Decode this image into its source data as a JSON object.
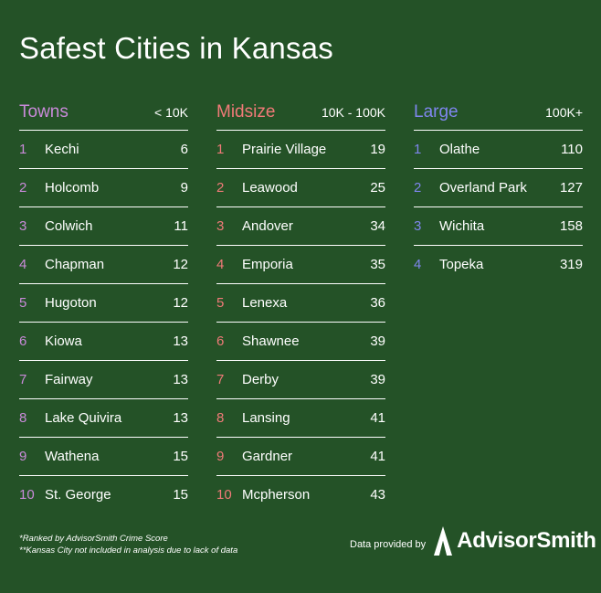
{
  "title": "Safest Cities in Kansas",
  "colors": {
    "background": "#245227",
    "towns": "#c98ad9",
    "midsize": "#f07a78",
    "large": "#7f86ee"
  },
  "columns": [
    {
      "name": "Towns",
      "range": "< 10K",
      "rows": [
        {
          "rank": "1",
          "city": "Kechi",
          "score": "6"
        },
        {
          "rank": "2",
          "city": "Holcomb",
          "score": "9"
        },
        {
          "rank": "3",
          "city": "Colwich",
          "score": "11"
        },
        {
          "rank": "4",
          "city": "Chapman",
          "score": "12"
        },
        {
          "rank": "5",
          "city": "Hugoton",
          "score": "12"
        },
        {
          "rank": "6",
          "city": "Kiowa",
          "score": "13"
        },
        {
          "rank": "7",
          "city": "Fairway",
          "score": "13"
        },
        {
          "rank": "8",
          "city": "Lake Quivira",
          "score": "13"
        },
        {
          "rank": "9",
          "city": "Wathena",
          "score": "15"
        },
        {
          "rank": "10",
          "city": "St. George",
          "score": "15"
        }
      ]
    },
    {
      "name": "Midsize",
      "range": "10K - 100K",
      "rows": [
        {
          "rank": "1",
          "city": "Prairie Village",
          "score": "19"
        },
        {
          "rank": "2",
          "city": "Leawood",
          "score": "25"
        },
        {
          "rank": "3",
          "city": "Andover",
          "score": "34"
        },
        {
          "rank": "4",
          "city": "Emporia",
          "score": "35"
        },
        {
          "rank": "5",
          "city": "Lenexa",
          "score": "36"
        },
        {
          "rank": "6",
          "city": "Shawnee",
          "score": "39"
        },
        {
          "rank": "7",
          "city": "Derby",
          "score": "39"
        },
        {
          "rank": "8",
          "city": "Lansing",
          "score": "41"
        },
        {
          "rank": "9",
          "city": "Gardner",
          "score": "41"
        },
        {
          "rank": "10",
          "city": "Mcpherson",
          "score": "43"
        }
      ]
    },
    {
      "name": "Large",
      "range": "100K+",
      "rows": [
        {
          "rank": "1",
          "city": "Olathe",
          "score": "110"
        },
        {
          "rank": "2",
          "city": "Overland Park",
          "score": "127"
        },
        {
          "rank": "3",
          "city": "Wichita",
          "score": "158"
        },
        {
          "rank": "4",
          "city": "Topeka",
          "score": "319"
        }
      ]
    }
  ],
  "footnotes": {
    "line1": "*Ranked by AdvisorSmith Crime Score",
    "line2": "**Kansas City not included in analysis due to lack of data"
  },
  "credit": {
    "label": "Data provided by",
    "logo_icon": "advisorsmith-a-icon",
    "logo_text": "AdvisorSmith"
  }
}
